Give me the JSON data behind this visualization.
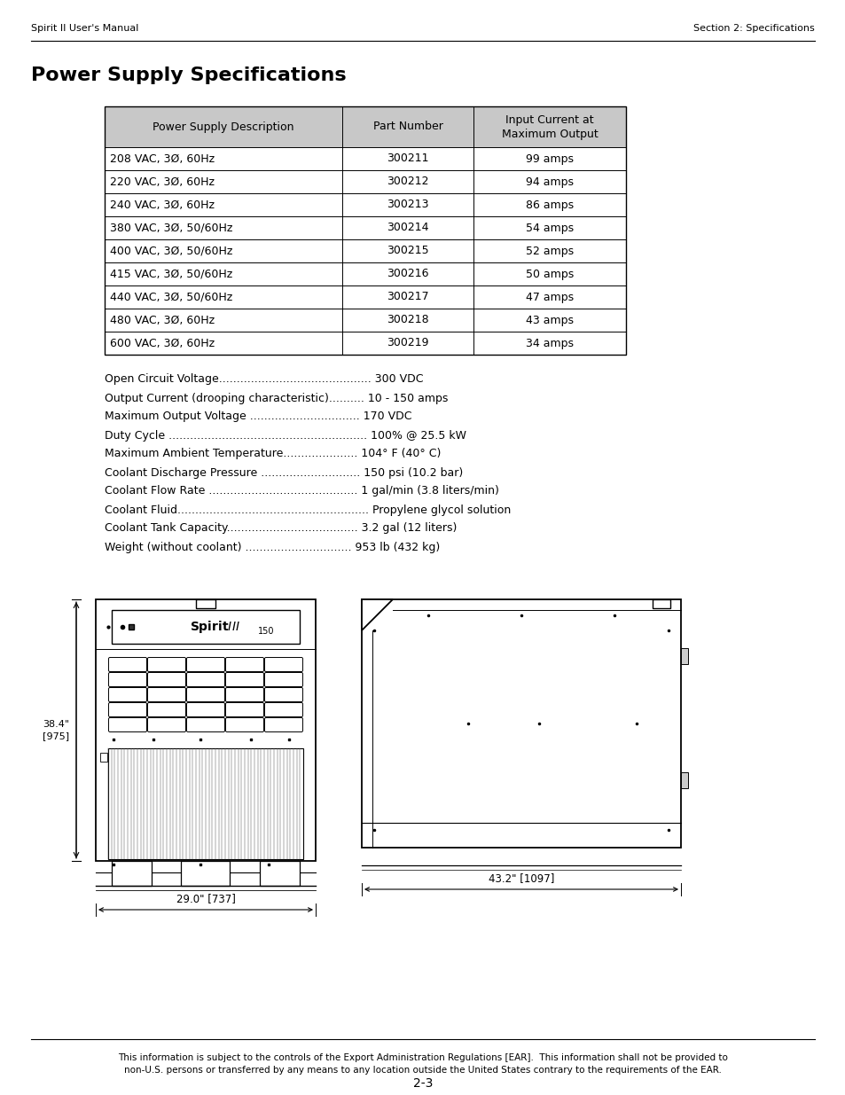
{
  "header_left": "Spirit II User's Manual",
  "header_right": "Section 2: Specifications",
  "title": "Power Supply Specifications",
  "table_headers": [
    "Power Supply Description",
    "Part Number",
    "Input Current at\nMaximum Output"
  ],
  "table_rows": [
    [
      "208 VAC, 3Ø, 60Hz",
      "300211",
      "99 amps"
    ],
    [
      "220 VAC, 3Ø, 60Hz",
      "300212",
      "94 amps"
    ],
    [
      "240 VAC, 3Ø, 60Hz",
      "300213",
      "86 amps"
    ],
    [
      "380 VAC, 3Ø, 50/60Hz",
      "300214",
      "54 amps"
    ],
    [
      "400 VAC, 3Ø, 50/60Hz",
      "300215",
      "52 amps"
    ],
    [
      "415 VAC, 3Ø, 50/60Hz",
      "300216",
      "50 amps"
    ],
    [
      "440 VAC, 3Ø, 50/60Hz",
      "300217",
      "47 amps"
    ],
    [
      "480 VAC, 3Ø, 60Hz",
      "300218",
      "43 amps"
    ],
    [
      "600 VAC, 3Ø, 60Hz",
      "300219",
      "34 amps"
    ]
  ],
  "specs": [
    [
      "Open Circuit Voltage",
      "........................................... ",
      "300 VDC"
    ],
    [
      "Output Current (drooping characteristic)",
      ".......... ",
      "10 - 150 amps"
    ],
    [
      "Maximum Output Voltage ",
      "............................... ",
      "170 VDC"
    ],
    [
      "Duty Cycle ",
      "........................................................ ",
      "100% @ 25.5 kW"
    ],
    [
      "Maximum Ambient Temperature",
      "..................... ",
      "104° F (40° C)"
    ],
    [
      "Coolant Discharge Pressure ",
      "............................ ",
      "150 psi (10.2 bar)"
    ],
    [
      "Coolant Flow Rate ",
      ".......................................... ",
      "1 gal/min (3.8 liters/min)"
    ],
    [
      "Coolant Fluid",
      "...................................................... ",
      "Propylene glycol solution"
    ],
    [
      "Coolant Tank Capacity",
      "..................................... ",
      "3.2 gal (12 liters)"
    ],
    [
      "Weight (without coolant) ",
      ".............................. ",
      "953 lb (432 kg)"
    ]
  ],
  "footer_text": "This information is subject to the controls of the Export Administration Regulations [EAR].  This information shall not be provided to\nnon-U.S. persons or transferred by any means to any location outside the United States contrary to the requirements of the EAR.",
  "page_number": "2-3",
  "dim_height": "38.4\"\n[975]",
  "dim_width_left": "29.0\" [737]",
  "dim_width_right": "43.2\" [1097]",
  "bg_color": "#ffffff",
  "header_color": "#c8c8c8",
  "text_color": "#000000"
}
